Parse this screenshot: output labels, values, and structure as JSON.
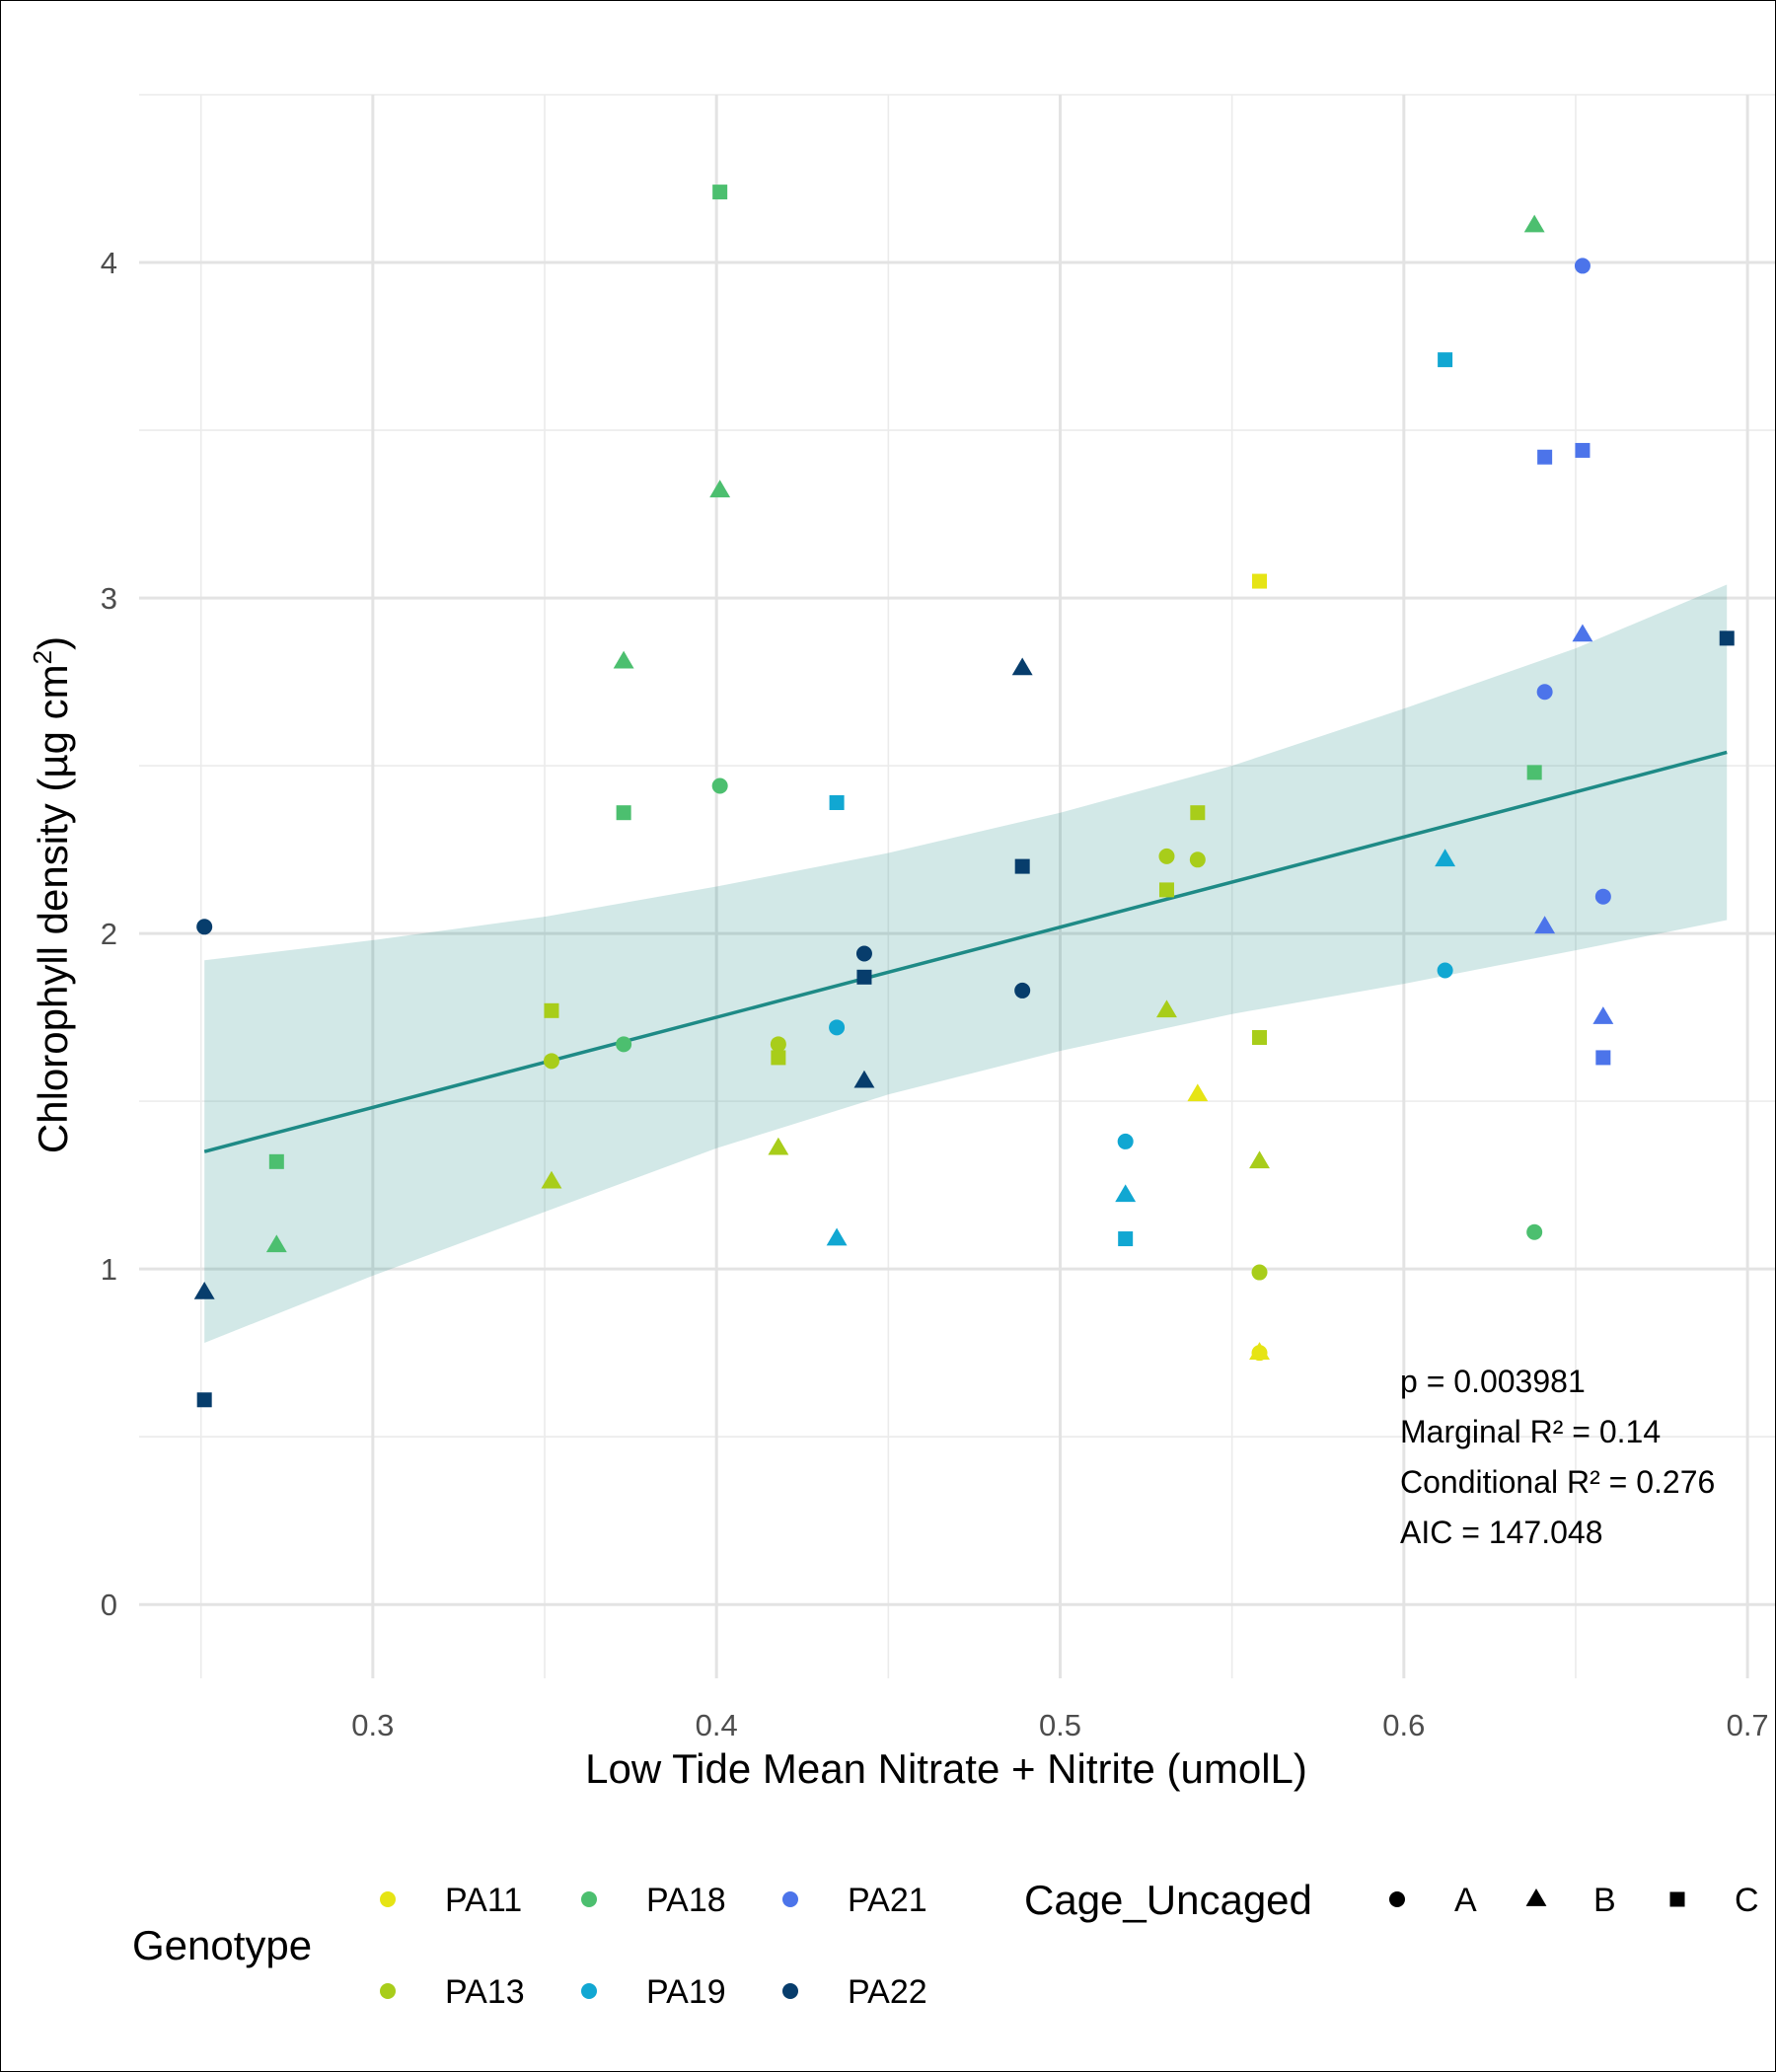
{
  "chart_data": {
    "type": "scatter",
    "xlabel": "Low Tide Mean Nitrate + Nitrite (umolL)",
    "ylabel": "Chlorophyll density (µg cm",
    "ylabel_sup": "2",
    "ylabel_close": ")",
    "xlim": [
      0.232,
      0.708
    ],
    "ylim": [
      -0.22,
      4.5
    ],
    "x_ticks": [
      0.3,
      0.4,
      0.5,
      0.6,
      0.7
    ],
    "x_tick_labels": [
      "0.3",
      "0.4",
      "0.5",
      "0.6",
      "0.7"
    ],
    "y_ticks": [
      0,
      1,
      2,
      3,
      4
    ],
    "y_tick_labels": [
      "0",
      "1",
      "2",
      "3",
      "4"
    ],
    "grid": true,
    "fit_line": {
      "x": [
        0.251,
        0.694
      ],
      "y": [
        1.35,
        2.54
      ]
    },
    "confidence_band": {
      "x": [
        0.251,
        0.3,
        0.35,
        0.4,
        0.45,
        0.5,
        0.55,
        0.6,
        0.65,
        0.694
      ],
      "lower": [
        0.78,
        0.98,
        1.17,
        1.36,
        1.52,
        1.65,
        1.76,
        1.85,
        1.95,
        2.04
      ],
      "upper": [
        1.92,
        1.98,
        2.05,
        2.14,
        2.24,
        2.36,
        2.5,
        2.67,
        2.85,
        3.04
      ]
    },
    "annotations": [
      "p = 0.003981",
      "Marginal R² = 0.14",
      "Conditional R² = 0.276",
      "AIC = 147.048"
    ],
    "genotype_legend_title": "Genotype",
    "shape_legend_title": "Cage_Uncaged",
    "genotypes": [
      {
        "name": "PA11",
        "color": "#e6e414"
      },
      {
        "name": "PA13",
        "color": "#a8cd1a"
      },
      {
        "name": "PA18",
        "color": "#4cbf6f"
      },
      {
        "name": "PA19",
        "color": "#11a7d2"
      },
      {
        "name": "PA21",
        "color": "#4c74ea"
      },
      {
        "name": "PA22",
        "color": "#073d6c"
      }
    ],
    "shapes": [
      {
        "name": "A",
        "shape": "circle"
      },
      {
        "name": "B",
        "shape": "triangle"
      },
      {
        "name": "C",
        "shape": "square"
      }
    ],
    "points": [
      {
        "g": "PA11",
        "s": "C",
        "x": 0.558,
        "y": 3.05
      },
      {
        "g": "PA11",
        "s": "B",
        "x": 0.54,
        "y": 1.52
      },
      {
        "g": "PA11",
        "s": "A",
        "x": 0.558,
        "y": 0.75
      },
      {
        "g": "PA11",
        "s": "B",
        "x": 0.558,
        "y": 0.75
      },
      {
        "g": "PA13",
        "s": "C",
        "x": 0.54,
        "y": 2.36
      },
      {
        "g": "PA13",
        "s": "A",
        "x": 0.531,
        "y": 2.23
      },
      {
        "g": "PA13",
        "s": "A",
        "x": 0.54,
        "y": 2.22
      },
      {
        "g": "PA13",
        "s": "C",
        "x": 0.531,
        "y": 2.13
      },
      {
        "g": "PA13",
        "s": "B",
        "x": 0.531,
        "y": 1.77
      },
      {
        "g": "PA13",
        "s": "C",
        "x": 0.558,
        "y": 1.69
      },
      {
        "g": "PA13",
        "s": "B",
        "x": 0.558,
        "y": 1.32
      },
      {
        "g": "PA13",
        "s": "A",
        "x": 0.558,
        "y": 0.99
      },
      {
        "g": "PA13",
        "s": "C",
        "x": 0.352,
        "y": 1.77
      },
      {
        "g": "PA13",
        "s": "A",
        "x": 0.352,
        "y": 1.62
      },
      {
        "g": "PA13",
        "s": "B",
        "x": 0.352,
        "y": 1.26
      },
      {
        "g": "PA13",
        "s": "A",
        "x": 0.418,
        "y": 1.67
      },
      {
        "g": "PA13",
        "s": "C",
        "x": 0.418,
        "y": 1.63
      },
      {
        "g": "PA13",
        "s": "B",
        "x": 0.418,
        "y": 1.36
      },
      {
        "g": "PA18",
        "s": "C",
        "x": 0.401,
        "y": 4.21
      },
      {
        "g": "PA18",
        "s": "B",
        "x": 0.401,
        "y": 3.32
      },
      {
        "g": "PA18",
        "s": "A",
        "x": 0.401,
        "y": 2.44
      },
      {
        "g": "PA18",
        "s": "B",
        "x": 0.373,
        "y": 2.81
      },
      {
        "g": "PA18",
        "s": "C",
        "x": 0.373,
        "y": 2.36
      },
      {
        "g": "PA18",
        "s": "A",
        "x": 0.373,
        "y": 1.67
      },
      {
        "g": "PA18",
        "s": "C",
        "x": 0.272,
        "y": 1.32
      },
      {
        "g": "PA18",
        "s": "B",
        "x": 0.272,
        "y": 1.07
      },
      {
        "g": "PA18",
        "s": "B",
        "x": 0.638,
        "y": 4.11
      },
      {
        "g": "PA18",
        "s": "C",
        "x": 0.638,
        "y": 2.48
      },
      {
        "g": "PA18",
        "s": "A",
        "x": 0.638,
        "y": 1.11
      },
      {
        "g": "PA19",
        "s": "C",
        "x": 0.612,
        "y": 3.71
      },
      {
        "g": "PA19",
        "s": "B",
        "x": 0.612,
        "y": 2.22
      },
      {
        "g": "PA19",
        "s": "A",
        "x": 0.612,
        "y": 1.89
      },
      {
        "g": "PA19",
        "s": "C",
        "x": 0.435,
        "y": 2.39
      },
      {
        "g": "PA19",
        "s": "A",
        "x": 0.435,
        "y": 1.72
      },
      {
        "g": "PA19",
        "s": "B",
        "x": 0.435,
        "y": 1.09
      },
      {
        "g": "PA19",
        "s": "A",
        "x": 0.519,
        "y": 1.38
      },
      {
        "g": "PA19",
        "s": "B",
        "x": 0.519,
        "y": 1.22
      },
      {
        "g": "PA19",
        "s": "C",
        "x": 0.519,
        "y": 1.09
      },
      {
        "g": "PA21",
        "s": "A",
        "x": 0.652,
        "y": 3.99
      },
      {
        "g": "PA21",
        "s": "C",
        "x": 0.652,
        "y": 3.44
      },
      {
        "g": "PA21",
        "s": "B",
        "x": 0.652,
        "y": 2.89
      },
      {
        "g": "PA21",
        "s": "C",
        "x": 0.641,
        "y": 3.42
      },
      {
        "g": "PA21",
        "s": "A",
        "x": 0.641,
        "y": 2.72
      },
      {
        "g": "PA21",
        "s": "B",
        "x": 0.641,
        "y": 2.02
      },
      {
        "g": "PA21",
        "s": "A",
        "x": 0.658,
        "y": 2.11
      },
      {
        "g": "PA21",
        "s": "B",
        "x": 0.658,
        "y": 1.75
      },
      {
        "g": "PA21",
        "s": "C",
        "x": 0.658,
        "y": 1.63
      },
      {
        "g": "PA22",
        "s": "A",
        "x": 0.251,
        "y": 2.02
      },
      {
        "g": "PA22",
        "s": "B",
        "x": 0.251,
        "y": 0.93
      },
      {
        "g": "PA22",
        "s": "C",
        "x": 0.251,
        "y": 0.61
      },
      {
        "g": "PA22",
        "s": "A",
        "x": 0.443,
        "y": 1.94
      },
      {
        "g": "PA22",
        "s": "C",
        "x": 0.443,
        "y": 1.87
      },
      {
        "g": "PA22",
        "s": "B",
        "x": 0.443,
        "y": 1.56
      },
      {
        "g": "PA22",
        "s": "B",
        "x": 0.489,
        "y": 2.79
      },
      {
        "g": "PA22",
        "s": "C",
        "x": 0.489,
        "y": 2.2
      },
      {
        "g": "PA22",
        "s": "A",
        "x": 0.489,
        "y": 1.83
      },
      {
        "g": "PA22",
        "s": "C",
        "x": 0.694,
        "y": 2.88
      }
    ],
    "fit_color": "#1e8a86",
    "band_color": "#1e8a86"
  }
}
